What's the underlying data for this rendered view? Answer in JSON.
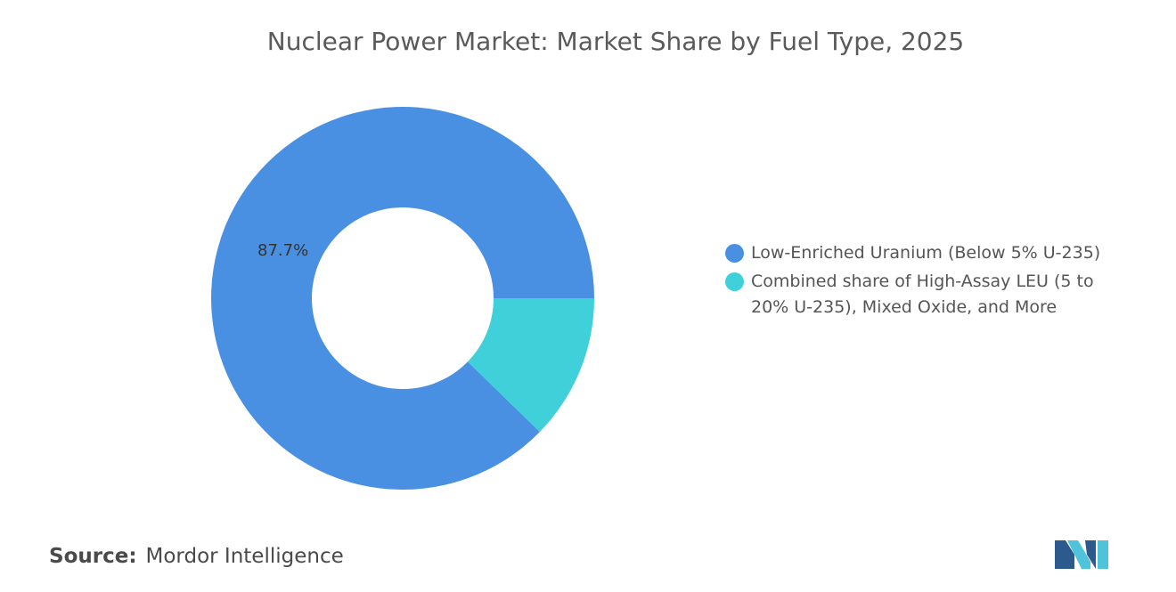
{
  "title": "Nuclear Power Market: Market Share by Fuel Type, 2025",
  "chart_data": {
    "type": "pie",
    "donut": true,
    "title": "Nuclear Power Market: Market Share by Fuel Type, 2025",
    "categories": [
      "Low-Enriched Uranium (Below 5% U-235)",
      "Combined share of High-Assay LEU (5 to 20% U-235), Mixed Oxide, and More"
    ],
    "values": [
      87.7,
      12.3
    ],
    "data_labels": [
      "87.7%",
      ""
    ],
    "colors": [
      "#4a90e2",
      "#3fd0d9"
    ],
    "legend_position": "right"
  },
  "legend": {
    "items": [
      {
        "label": "Low-Enriched Uranium (Below 5% U-235)",
        "color": "#4a90e2"
      },
      {
        "label": "Combined share of High-Assay LEU (5 to 20% U-235), Mixed Oxide, and More",
        "color": "#3fd0d9"
      }
    ]
  },
  "source": {
    "label": "Source:",
    "value": "Mordor Intelligence"
  },
  "logo": {
    "icon": "mordor-intelligence-logo"
  }
}
